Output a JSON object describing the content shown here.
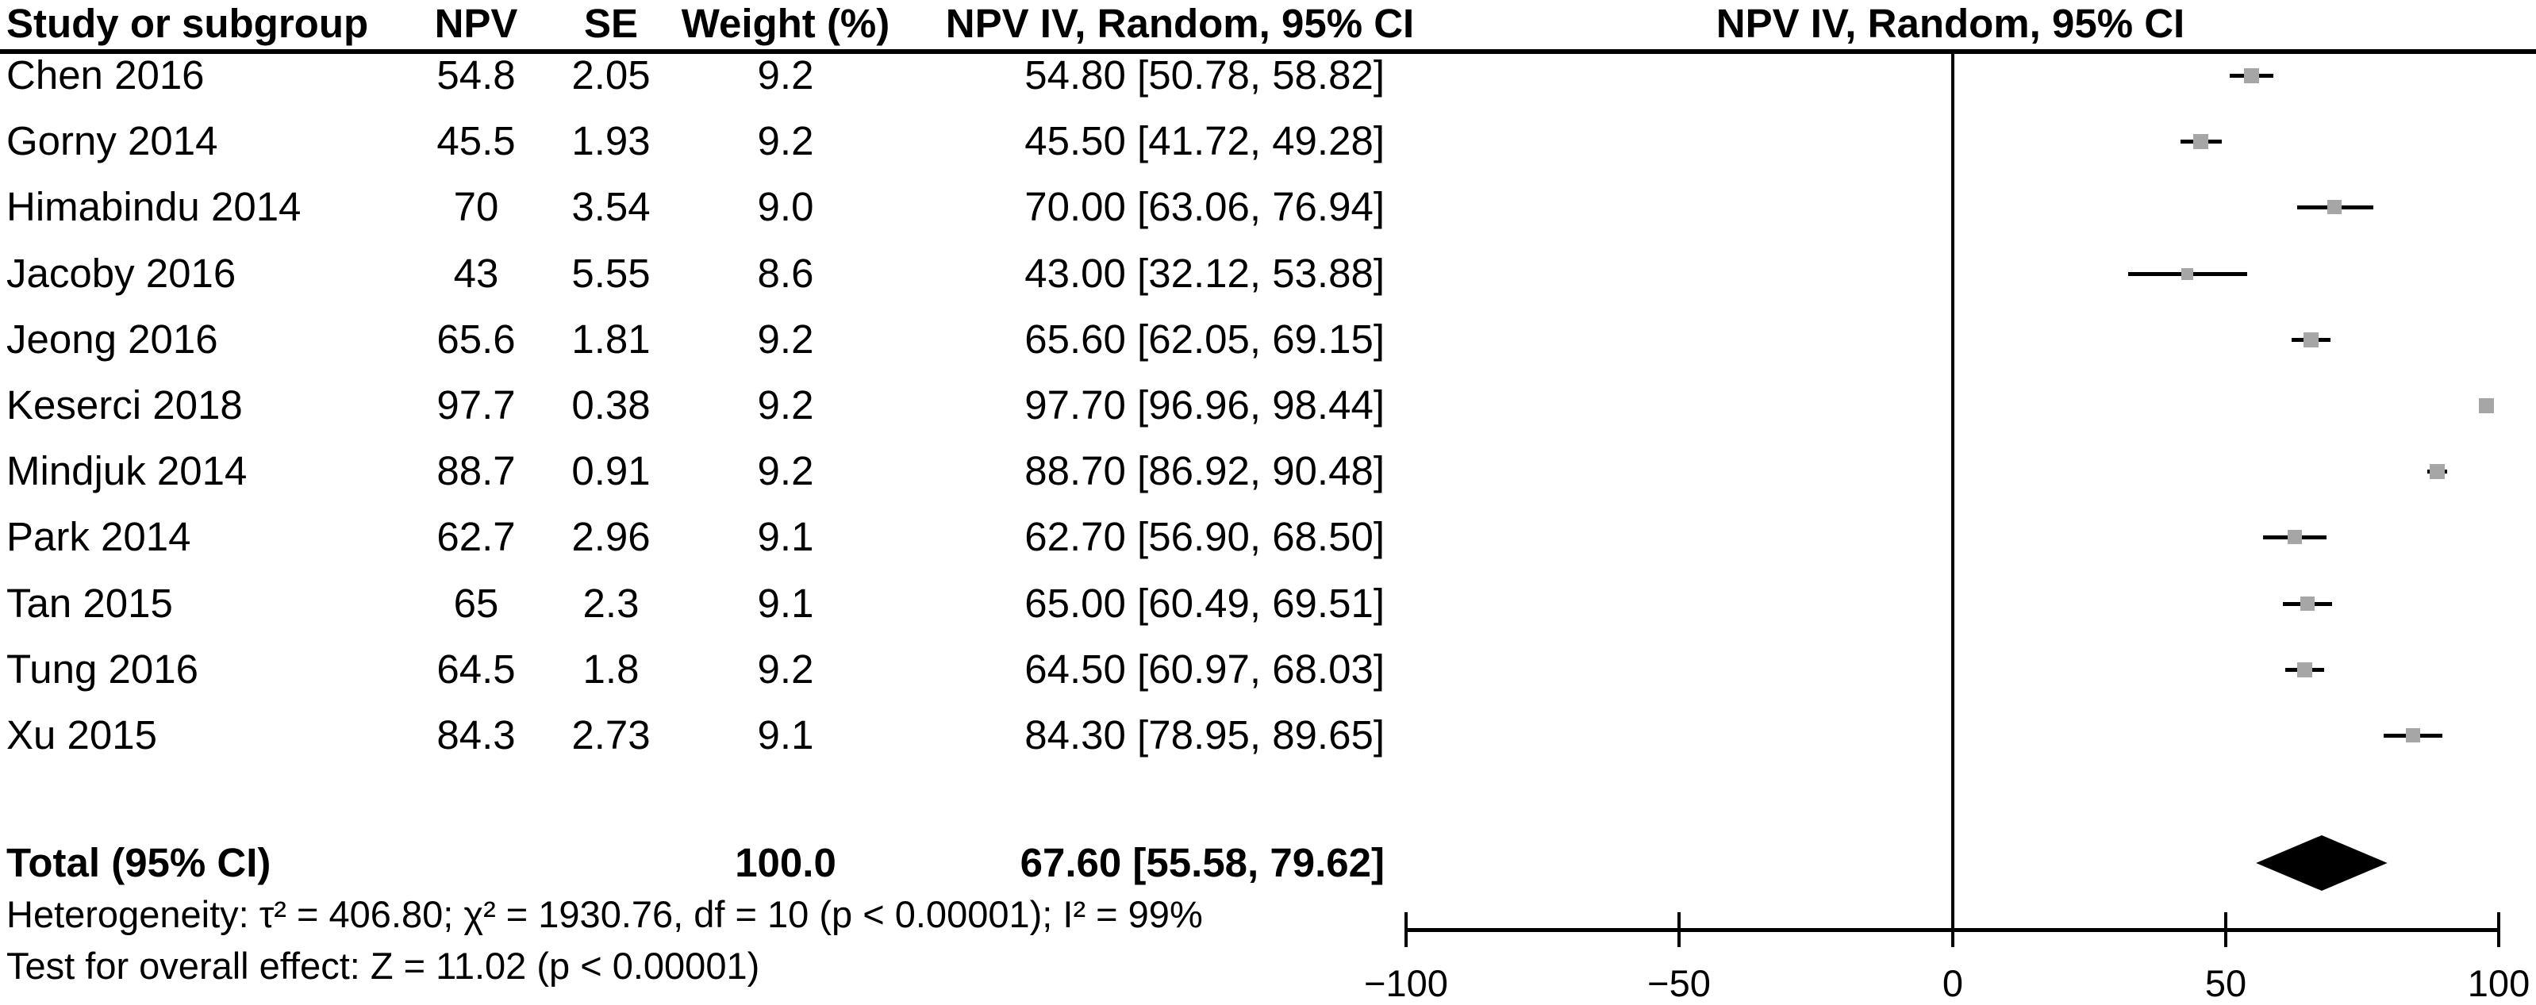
{
  "table": {
    "headers": {
      "study": "Study or subgroup",
      "npv": "NPV",
      "se": "SE",
      "weight": "Weight (%)",
      "ci": "NPV IV, Random, 95% CI",
      "plot": "NPV IV, Random, 95% CI"
    }
  },
  "chart_data": {
    "type": "forest",
    "effect_measure": "NPV IV, Random, 95% CI",
    "x_axis": {
      "range": [
        -100,
        100
      ],
      "ticks": [
        -100,
        -50,
        0,
        50,
        100
      ],
      "tick_labels": [
        "−100",
        "−50",
        "0",
        "50",
        "100"
      ],
      "zero_line": 0
    },
    "studies": [
      {
        "label": "Chen 2016",
        "npv": "54.8",
        "se": "2.05",
        "weight": "9.2",
        "mean": 54.8,
        "lo": 50.78,
        "hi": 58.82,
        "ci_text": "54.80 [50.78, 58.82]"
      },
      {
        "label": "Gorny 2014",
        "npv": "45.5",
        "se": "1.93",
        "weight": "9.2",
        "mean": 45.5,
        "lo": 41.72,
        "hi": 49.28,
        "ci_text": "45.50 [41.72, 49.28]"
      },
      {
        "label": "Himabindu 2014",
        "npv": "70",
        "se": "3.54",
        "weight": "9.0",
        "mean": 70.0,
        "lo": 63.06,
        "hi": 76.94,
        "ci_text": "70.00 [63.06, 76.94]"
      },
      {
        "label": "Jacoby 2016",
        "npv": "43",
        "se": "5.55",
        "weight": "8.6",
        "mean": 43.0,
        "lo": 32.12,
        "hi": 53.88,
        "ci_text": "43.00 [32.12, 53.88]"
      },
      {
        "label": "Jeong 2016",
        "npv": "65.6",
        "se": "1.81",
        "weight": "9.2",
        "mean": 65.6,
        "lo": 62.05,
        "hi": 69.15,
        "ci_text": "65.60 [62.05, 69.15]"
      },
      {
        "label": "Keserci 2018",
        "npv": "97.7",
        "se": "0.38",
        "weight": "9.2",
        "mean": 97.7,
        "lo": 96.96,
        "hi": 98.44,
        "ci_text": "97.70 [96.96, 98.44]"
      },
      {
        "label": "Mindjuk 2014",
        "npv": "88.7",
        "se": "0.91",
        "weight": "9.2",
        "mean": 88.7,
        "lo": 86.92,
        "hi": 90.48,
        "ci_text": "88.70 [86.92, 90.48]"
      },
      {
        "label": "Park 2014",
        "npv": "62.7",
        "se": "2.96",
        "weight": "9.1",
        "mean": 62.7,
        "lo": 56.9,
        "hi": 68.5,
        "ci_text": "62.70 [56.90, 68.50]"
      },
      {
        "label": "Tan 2015",
        "npv": "65",
        "se": "2.3",
        "weight": "9.1",
        "mean": 65.0,
        "lo": 60.49,
        "hi": 69.51,
        "ci_text": "65.00 [60.49, 69.51]"
      },
      {
        "label": "Tung 2016",
        "npv": "64.5",
        "se": "1.8",
        "weight": "9.2",
        "mean": 64.5,
        "lo": 60.97,
        "hi": 68.03,
        "ci_text": "64.50 [60.97, 68.03]"
      },
      {
        "label": "Xu 2015",
        "npv": "84.3",
        "se": "2.73",
        "weight": "9.1",
        "mean": 84.3,
        "lo": 78.95,
        "hi": 89.65,
        "ci_text": "84.30 [78.95, 89.65]"
      }
    ],
    "total": {
      "label": "Total (95% CI)",
      "weight": "100.0",
      "mean": 67.6,
      "lo": 55.58,
      "hi": 79.62,
      "ci_text": "67.60 [55.58, 79.62]"
    },
    "footer": {
      "heterogeneity": "Heterogeneity: τ² = 406.80; χ² = 1930.76, df = 10 (p < 0.00001); I² = 99%",
      "overall_effect": "Test for overall effect: Z = 11.02 (p < 0.00001)"
    },
    "colors": {
      "marker_fill": "#a6a6a6",
      "line": "#000000",
      "diamond": "#000000"
    }
  }
}
